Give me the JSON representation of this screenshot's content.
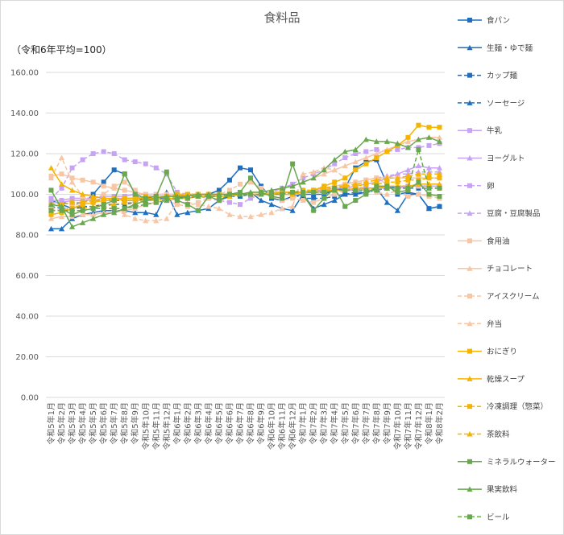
{
  "chart_data": {
    "type": "line",
    "title": "食料品",
    "subtitle": "（令和6年平均=100）",
    "categories": [
      "令和5年1月",
      "令和5年2月",
      "令和5年3月",
      "令和5年4月",
      "令和5年5月",
      "令和5年6月",
      "令和5年7月",
      "令和5年8月",
      "令和5年9月",
      "令和5年10月",
      "令和5年11月",
      "令和5年12月",
      "令和6年1月",
      "令和6年2月",
      "令和6年3月",
      "令和6年4月",
      "令和6年5月",
      "令和6年6月",
      "令和6年7月",
      "令和6年8月",
      "令和6年9月",
      "令和6年10月",
      "令和6年11月",
      "令和6年12月",
      "令和7年1月",
      "令和7年2月",
      "令和7年3月",
      "令和7年4月",
      "令和7年5月",
      "令和7年6月",
      "令和7年7月",
      "令和7年8月",
      "令和7年9月",
      "令和7年10月",
      "令和7年11月",
      "令和7年12月",
      "令和8年1月",
      "令和8年2月"
    ],
    "ylim": [
      0,
      160
    ],
    "yticks": [
      {
        "value": 0,
        "label": "0.00"
      },
      {
        "value": 20,
        "label": "20.00"
      },
      {
        "value": 40,
        "label": "40.00"
      },
      {
        "value": 60,
        "label": "60.00"
      },
      {
        "value": 80,
        "label": "80.00"
      },
      {
        "value": 100,
        "label": "100.00"
      },
      {
        "value": 120,
        "label": "120.00"
      },
      {
        "value": 140,
        "label": "140.00"
      },
      {
        "value": 160,
        "label": "160.00"
      }
    ],
    "grid": true,
    "series": [
      {
        "name": "食パン",
        "color": "#1f6fc0",
        "dash": false,
        "marker": "square",
        "values": [
          97,
          95,
          93,
          95,
          100,
          106,
          112,
          110,
          100,
          95,
          96,
          97,
          98,
          99,
          100,
          100,
          102,
          107,
          113,
          112,
          104,
          98,
          97,
          99,
          100,
          100,
          100,
          102,
          103,
          113,
          116,
          117,
          105,
          100,
          101,
          100,
          93,
          94
        ]
      },
      {
        "name": "生麺・ゆで麺",
        "color": "#1f6fc0",
        "dash": false,
        "marker": "triangle",
        "values": [
          83,
          83,
          88,
          90,
          91,
          92,
          92,
          92,
          91,
          91,
          90,
          101,
          90,
          91,
          92,
          93,
          97,
          99,
          100,
          101,
          97,
          95,
          93,
          92,
          100,
          93,
          95,
          97,
          100,
          100,
          101,
          103,
          96,
          92,
          100,
          100,
          93,
          94
        ]
      },
      {
        "name": "カップ麺",
        "color": "#1f6fc0",
        "dash": true,
        "marker": "square",
        "values": [
          96,
          96,
          95,
          96,
          97,
          97,
          97,
          97,
          97,
          98,
          98,
          98,
          98,
          98,
          99,
          99,
          99,
          99,
          99,
          100,
          100,
          100,
          100,
          100,
          98,
          98,
          98,
          99,
          100,
          101,
          101,
          102,
          103,
          103,
          103,
          103,
          103,
          103
        ]
      },
      {
        "name": "ソーセージ",
        "color": "#1f6fc0",
        "dash": true,
        "marker": "triangle",
        "values": [
          94,
          93,
          93,
          94,
          94,
          95,
          95,
          95,
          96,
          97,
          97,
          98,
          98,
          99,
          99,
          99,
          100,
          100,
          100,
          100,
          100,
          100,
          101,
          101,
          101,
          101,
          101,
          102,
          102,
          102,
          103,
          103,
          103,
          104,
          104,
          104,
          104,
          104
        ]
      },
      {
        "name": "牛乳",
        "color": "#c7a3f3",
        "dash": false,
        "marker": "square",
        "values": [
          97,
          97,
          98,
          98,
          98,
          99,
          99,
          99,
          100,
          100,
          100,
          100,
          100,
          100,
          100,
          100,
          100,
          100,
          100,
          100,
          100,
          100,
          100,
          100,
          101,
          101,
          101,
          102,
          102,
          102,
          103,
          103,
          103,
          103,
          104,
          104,
          104,
          104
        ]
      },
      {
        "name": "ヨーグルト",
        "color": "#c7a3f3",
        "dash": false,
        "marker": "triangle",
        "values": [
          96,
          96,
          97,
          97,
          97,
          98,
          98,
          98,
          98,
          99,
          99,
          99,
          99,
          99,
          100,
          100,
          100,
          100,
          100,
          100,
          100,
          101,
          101,
          101,
          101,
          102,
          102,
          103,
          103,
          104,
          105,
          106,
          108,
          110,
          112,
          114,
          113,
          113
        ]
      },
      {
        "name": "卵",
        "color": "#c7a3f3",
        "dash": true,
        "marker": "square",
        "values": [
          98,
          103,
          113,
          117,
          120,
          121,
          120,
          117,
          116,
          115,
          113,
          110,
          101,
          100,
          99,
          98,
          97,
          96,
          95,
          98,
          100,
          101,
          103,
          105,
          108,
          110,
          112,
          115,
          118,
          120,
          121,
          122,
          121,
          122,
          123,
          123,
          124,
          125
        ]
      },
      {
        "name": "豆腐・豆腐製品",
        "color": "#c7a3f3",
        "dash": true,
        "marker": "triangle",
        "values": [
          95,
          95,
          96,
          96,
          97,
          97,
          98,
          98,
          98,
          99,
          99,
          99,
          99,
          100,
          100,
          100,
          100,
          100,
          100,
          100,
          100,
          100,
          101,
          101,
          101,
          102,
          103,
          104,
          105,
          106,
          107,
          108,
          109,
          110,
          110,
          111,
          111,
          111
        ]
      },
      {
        "name": "食用油",
        "color": "#f6c6a5",
        "dash": false,
        "marker": "square",
        "values": [
          109,
          110,
          108,
          107,
          106,
          104,
          103,
          102,
          101,
          100,
          100,
          100,
          100,
          100,
          100,
          100,
          100,
          100,
          100,
          100,
          100,
          100,
          100,
          100,
          101,
          102,
          103,
          104,
          105,
          106,
          107,
          108,
          108,
          108,
          108,
          108,
          108,
          108
        ]
      },
      {
        "name": "チョコレート",
        "color": "#f6c6a5",
        "dash": false,
        "marker": "triangle",
        "values": [
          88,
          89,
          89,
          90,
          90,
          91,
          91,
          92,
          93,
          95,
          96,
          97,
          98,
          98,
          99,
          99,
          100,
          100,
          100,
          101,
          101,
          102,
          103,
          104,
          106,
          108,
          110,
          112,
          114,
          116,
          118,
          120,
          122,
          124,
          126,
          127,
          128,
          128
        ]
      },
      {
        "name": "アイスクリーム",
        "color": "#f6c6a5",
        "dash": true,
        "marker": "square",
        "values": [
          93,
          92,
          94,
          96,
          98,
          100,
          104,
          106,
          102,
          98,
          96,
          97,
          95,
          94,
          96,
          98,
          100,
          102,
          105,
          106,
          103,
          99,
          97,
          98,
          97,
          96,
          98,
          100,
          102,
          104,
          107,
          108,
          105,
          101,
          99,
          100,
          99,
          98
        ]
      },
      {
        "name": "弁当",
        "color": "#f6c6a5",
        "dash": true,
        "marker": "triangle",
        "values": [
          108,
          118,
          106,
          99,
          96,
          94,
          93,
          90,
          88,
          87,
          87,
          88,
          96,
          96,
          95,
          94,
          93,
          90,
          89,
          89,
          90,
          91,
          93,
          94,
          110,
          111,
          113,
          112,
          108,
          104,
          103,
          101,
          100,
          102,
          103,
          104,
          103,
          103
        ]
      },
      {
        "name": "おにぎり",
        "color": "#f5b400",
        "dash": false,
        "marker": "square",
        "values": [
          90,
          91,
          93,
          95,
          96,
          97,
          97,
          98,
          98,
          98,
          98,
          99,
          99,
          100,
          100,
          100,
          100,
          100,
          100,
          100,
          100,
          100,
          100,
          100,
          101,
          102,
          104,
          106,
          108,
          112,
          115,
          118,
          121,
          124,
          128,
          134,
          133,
          133
        ]
      },
      {
        "name": "乾燥スープ",
        "color": "#f5b400",
        "dash": false,
        "marker": "triangle",
        "values": [
          113,
          105,
          102,
          100,
          99,
          98,
          98,
          97,
          97,
          97,
          97,
          98,
          98,
          98,
          99,
          99,
          99,
          99,
          100,
          100,
          100,
          100,
          101,
          101,
          101,
          101,
          102,
          102,
          102,
          103,
          103,
          103,
          104,
          104,
          104,
          105,
          105,
          105
        ]
      },
      {
        "name": "冷凍調理（惣菜）",
        "color": "#f5b400",
        "dash": true,
        "marker": "square",
        "values": [
          95,
          95,
          96,
          96,
          97,
          97,
          98,
          98,
          98,
          99,
          99,
          99,
          100,
          100,
          100,
          100,
          100,
          100,
          100,
          100,
          100,
          101,
          101,
          101,
          102,
          102,
          103,
          103,
          104,
          104,
          105,
          105,
          106,
          106,
          107,
          107,
          108,
          108
        ]
      },
      {
        "name": "茶飲料",
        "color": "#f5b400",
        "dash": true,
        "marker": "triangle",
        "values": [
          92,
          92,
          93,
          93,
          94,
          94,
          95,
          96,
          96,
          97,
          97,
          98,
          99,
          99,
          99,
          100,
          100,
          100,
          100,
          100,
          100,
          100,
          101,
          101,
          102,
          102,
          103,
          104,
          104,
          105,
          106,
          107,
          108,
          108,
          109,
          110,
          110,
          110
        ]
      },
      {
        "name": "ミネラルウォーター",
        "color": "#6aa84f",
        "dash": false,
        "marker": "square",
        "values": [
          102,
          93,
          90,
          92,
          93,
          95,
          97,
          110,
          100,
          98,
          99,
          111,
          97,
          95,
          92,
          99,
          97,
          100,
          101,
          108,
          101,
          99,
          98,
          115,
          100,
          92,
          98,
          103,
          94,
          97,
          100,
          104,
          104,
          101,
          102,
          106,
          100,
          99
        ]
      },
      {
        "name": "果実飲料",
        "color": "#6aa84f",
        "dash": false,
        "marker": "triangle",
        "values": [
          95,
          94,
          84,
          86,
          88,
          90,
          91,
          93,
          95,
          97,
          98,
          99,
          99,
          99,
          100,
          100,
          100,
          100,
          100,
          101,
          101,
          102,
          103,
          104,
          106,
          108,
          112,
          117,
          121,
          122,
          127,
          126,
          126,
          125,
          123,
          127,
          128,
          126
        ]
      },
      {
        "name": "ビール",
        "color": "#6aa84f",
        "dash": true,
        "marker": "square",
        "values": [
          92,
          92,
          92,
          92,
          93,
          93,
          93,
          93,
          94,
          95,
          96,
          97,
          98,
          98,
          99,
          99,
          99,
          100,
          100,
          100,
          100,
          100,
          100,
          101,
          101,
          101,
          101,
          102,
          102,
          102,
          102,
          102,
          103,
          103,
          103,
          122,
          103,
          103
        ]
      }
    ]
  }
}
